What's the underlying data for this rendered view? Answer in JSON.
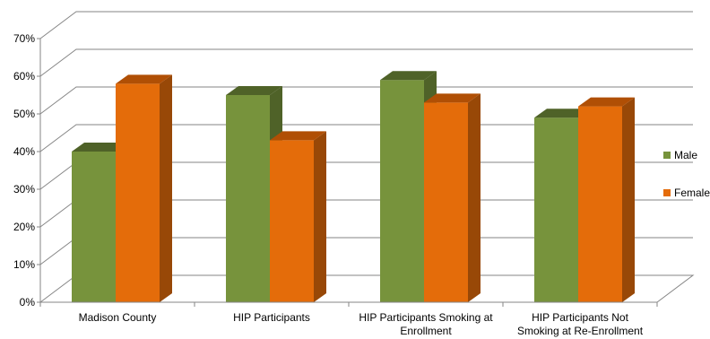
{
  "chart_data": {
    "type": "bar",
    "style": "3d-clustered-column",
    "categories": [
      [
        "Madison County"
      ],
      [
        "HIP Participants"
      ],
      [
        "HIP Participants Smoking at",
        "Enrollment"
      ],
      [
        "HIP Participants Not",
        "Smoking at Re-Enrollment"
      ]
    ],
    "series": [
      {
        "name": "Male",
        "values": [
          0.4,
          0.55,
          0.59,
          0.49
        ],
        "color": "#77933c",
        "top": "#4f6228",
        "side": "#4f6228"
      },
      {
        "name": "Female",
        "values": [
          0.58,
          0.43,
          0.53,
          0.52
        ],
        "color": "#e46c0a",
        "top": "#b04f05",
        "side": "#984807"
      }
    ],
    "yticks": [
      "0%",
      "10%",
      "20%",
      "30%",
      "40%",
      "50%",
      "60%",
      "70%"
    ],
    "ylim": [
      0,
      0.7
    ],
    "grid": true,
    "legend": "right"
  }
}
